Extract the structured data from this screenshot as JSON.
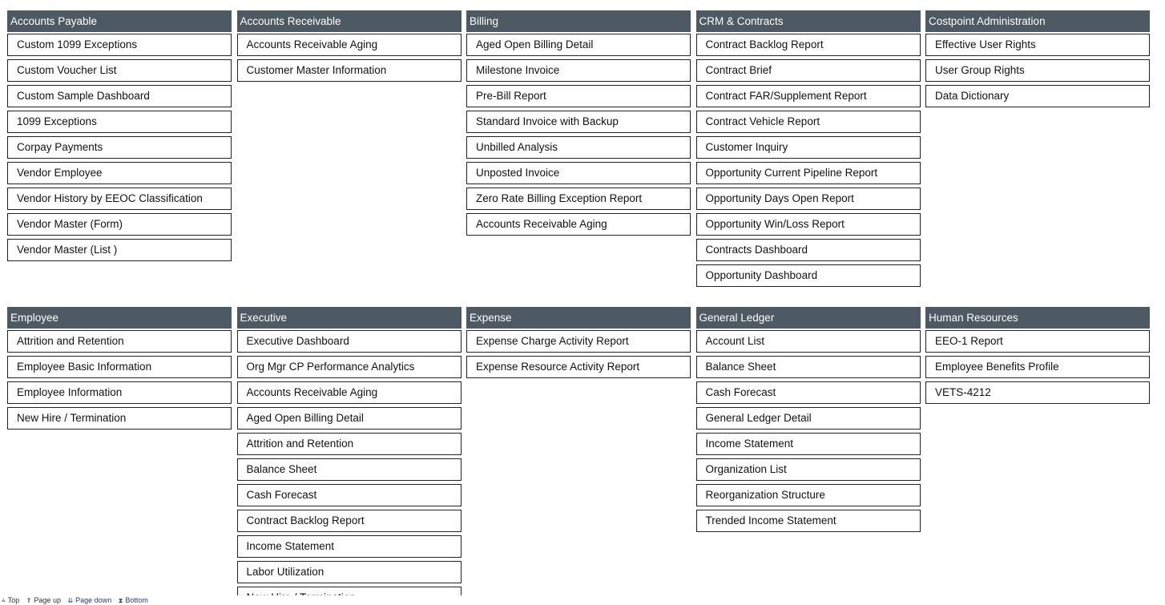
{
  "colors": {
    "header_bg": "#4d5a64",
    "header_text": "#ffffff",
    "link": "#1a3d9c"
  },
  "sections": [
    {
      "title": "Accounts Payable",
      "items": [
        "Custom 1099 Exceptions",
        "Custom Voucher List",
        "Custom Sample Dashboard",
        "1099 Exceptions",
        "Corpay Payments",
        "Vendor Employee",
        "Vendor History by EEOC Classification",
        "Vendor Master (Form)",
        "Vendor Master (List )"
      ]
    },
    {
      "title": "Accounts Receivable",
      "items": [
        "Accounts Receivable Aging",
        "Customer Master Information"
      ]
    },
    {
      "title": "Billing",
      "items": [
        "Aged Open Billing Detail",
        "Milestone Invoice",
        "Pre-Bill Report",
        "Standard Invoice with Backup",
        "Unbilled Analysis",
        "Unposted Invoice",
        "Zero Rate Billing Exception Report",
        "Accounts Receivable Aging"
      ]
    },
    {
      "title": "CRM & Contracts",
      "items": [
        "Contract Backlog Report",
        "Contract Brief",
        "Contract FAR/Supplement Report",
        "Contract Vehicle Report",
        "Customer Inquiry",
        "Opportunity Current Pipeline Report",
        "Opportunity Days Open Report",
        "Opportunity Win/Loss Report",
        "Contracts Dashboard",
        "Opportunity Dashboard"
      ]
    },
    {
      "title": "Costpoint Administration",
      "items": [
        "Effective User Rights",
        "User Group Rights",
        "Data Dictionary"
      ]
    },
    {
      "title": "Employee",
      "items": [
        "Attrition and Retention",
        "Employee Basic Information",
        "Employee Information",
        "New Hire / Termination"
      ]
    },
    {
      "title": "Executive",
      "items": [
        "Executive Dashboard",
        "Org Mgr CP Performance Analytics",
        "Accounts Receivable Aging",
        "Aged Open Billing Detail",
        "Attrition and Retention",
        "Balance Sheet",
        "Cash Forecast",
        "Contract Backlog Report",
        "Income Statement",
        "Labor Utilization",
        "New Hire / Termination"
      ]
    },
    {
      "title": "Expense",
      "items": [
        "Expense Charge Activity Report",
        "Expense Resource Activity Report"
      ]
    },
    {
      "title": "General Ledger",
      "items": [
        "Account List",
        "Balance Sheet",
        "Cash Forecast",
        "General Ledger Detail",
        "Income Statement",
        "Organization List",
        "Reorganization Structure",
        "Trended Income Statement"
      ]
    },
    {
      "title": "Human Resources",
      "items": [
        "EEO-1 Report",
        "Employee Benefits Profile",
        "VETS-4212"
      ]
    }
  ],
  "footer": {
    "top": {
      "label": "Top",
      "icon": "double-up-bar-icon",
      "glyph": "⩮"
    },
    "page_up": {
      "label": "Page up",
      "icon": "up-arrow-icon",
      "glyph": "⇑"
    },
    "page_down": {
      "label": "Page down",
      "icon": "double-down-arrow-icon",
      "glyph": "⇊"
    },
    "bottom": {
      "label": "Bottom",
      "icon": "double-down-bar-icon",
      "glyph": "⧗"
    }
  }
}
